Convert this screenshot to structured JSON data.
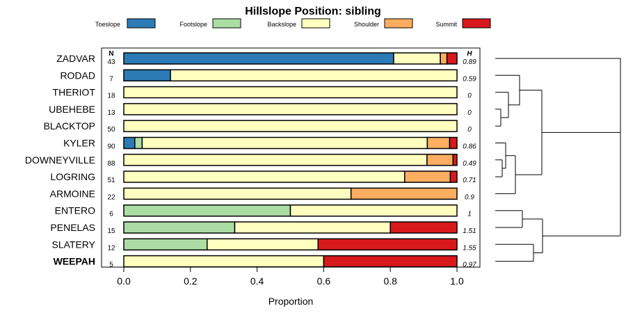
{
  "chart_data": {
    "type": "bar",
    "title": "Hillslope Position: sibling",
    "xlabel": "Proportion",
    "ylabel": "",
    "xlim": [
      0,
      1
    ],
    "xticks": [
      "0.0",
      "0.2",
      "0.4",
      "0.6",
      "0.8",
      "1.0"
    ],
    "n_header": "N",
    "h_header": "H",
    "legend_position": "top",
    "categories": [
      "ZADVAR",
      "RODAD",
      "THERIOT",
      "UBEHEBE",
      "BLACKTOP",
      "KYLER",
      "DOWNEYVILLE",
      "LOGRING",
      "ARMOINE",
      "ENTERO",
      "PENELAS",
      "SLATERY",
      "WEEPAH"
    ],
    "highlight": "WEEPAH",
    "n": [
      "43",
      "7",
      "18",
      "13",
      "50",
      "90",
      "88",
      "51",
      "22",
      "6",
      "15",
      "12",
      "5"
    ],
    "h": [
      "0.89",
      "0.59",
      "0",
      "0",
      "0",
      "0.86",
      "0.49",
      "0.71",
      "0.9",
      "1",
      "1.51",
      "1.55",
      "0.97"
    ],
    "series": [
      {
        "name": "Toeslope",
        "color": "#2c7bb6",
        "values": [
          0.81,
          0.14,
          0,
          0,
          0,
          0.033,
          0,
          0,
          0,
          0,
          0,
          0,
          0
        ]
      },
      {
        "name": "Footslope",
        "color": "#abdda4",
        "values": [
          0,
          0,
          0,
          0,
          0,
          0.022,
          0,
          0,
          0,
          0.5,
          0.333,
          0.25,
          0
        ]
      },
      {
        "name": "Backslope",
        "color": "#ffffbf",
        "values": [
          0.14,
          0.86,
          1,
          1,
          1,
          0.856,
          0.91,
          0.843,
          0.682,
          0.5,
          0.467,
          0.333,
          0.6
        ]
      },
      {
        "name": "Shoulder",
        "color": "#fdae61",
        "values": [
          0.02,
          0,
          0,
          0,
          0,
          0.067,
          0.078,
          0.137,
          0.318,
          0,
          0,
          0,
          0
        ]
      },
      {
        "name": "Summit",
        "color": "#d7191c",
        "values": [
          0.03,
          0,
          0,
          0,
          0,
          0.022,
          0.012,
          0.02,
          0,
          0,
          0.2,
          0.417,
          0.4
        ]
      }
    ]
  }
}
